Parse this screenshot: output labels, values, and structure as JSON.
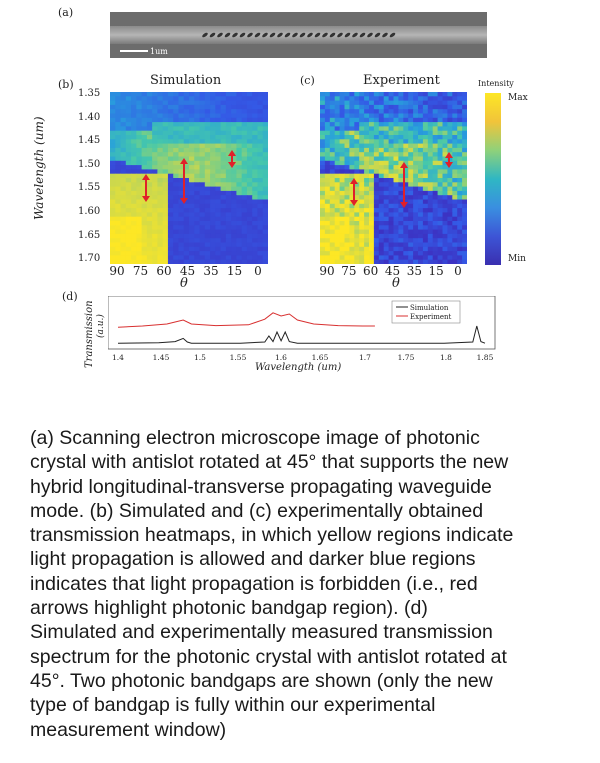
{
  "panel_a": {
    "label": "(a)",
    "scalebar_text": "1um"
  },
  "panel_b": {
    "label": "(b)",
    "title": "Simulation",
    "ylabel": "Wavelength (um)",
    "xlabel": "θ",
    "yticks": [
      "1.35",
      "1.40",
      "1.45",
      "1.50",
      "1.55",
      "1.60",
      "1.65",
      "1.70"
    ],
    "xticks": [
      "90",
      "75",
      "60",
      "45",
      "35",
      "15",
      "0"
    ]
  },
  "panel_c": {
    "label": "(c)",
    "title": "Experiment",
    "xlabel": "θ",
    "xticks": [
      "90",
      "75",
      "60",
      "45",
      "35",
      "15",
      "0"
    ]
  },
  "colorbar": {
    "title": "Intensity",
    "max_label": "Max",
    "min_label": "Min"
  },
  "panel_d": {
    "label": "(d)",
    "ylabel_line1": "Transmission",
    "ylabel_line2": "(a.u.)",
    "xlabel": "Wavelength (um)",
    "xticks": [
      "1.4",
      "1.45",
      "1.5",
      "1.55",
      "1.6",
      "1.65",
      "1.7",
      "1.75",
      "1.8",
      "1.85"
    ],
    "legend": [
      "Simulation",
      "Experiment"
    ]
  },
  "caption": "(a) Scanning electron microscope image of photonic\ncrystal with antislot rotated at 45° that supports the new\nhybrid longitudinal-transverse propagating waveguide\nmode. (b) Simulated and (c) experimentally obtained\ntransmission heatmaps, in which yellow regions indicate\nlight propagation is allowed and darker blue regions\nindicates that light propagation is forbidden (i.e., red\narrows highlight photonic bandgap region). (d)\nSimulated and experimentally measured transmission\nspectrum for the photonic crystal with antislot rotated at\n45°. Two photonic bandgaps are shown (only the new\ntype of bandgap is fully within our experimental\nmeasurement window)",
  "chart_data": [
    {
      "type": "line",
      "xlabel": "Wavelength (um)",
      "ylabel": "Transmission (a.u.)",
      "xlim": [
        1.4,
        1.85
      ],
      "series": [
        {
          "name": "Simulation",
          "x": [
            1.4,
            1.45,
            1.47,
            1.48,
            1.485,
            1.49,
            1.55,
            1.58,
            1.585,
            1.59,
            1.595,
            1.6,
            1.605,
            1.61,
            1.62,
            1.7,
            1.75,
            1.8,
            1.835,
            1.84,
            1.845,
            1.85
          ],
          "y": [
            0.02,
            0.03,
            0.06,
            0.14,
            0.05,
            0.02,
            0.02,
            0.05,
            0.2,
            0.06,
            0.3,
            0.08,
            0.3,
            0.06,
            0.02,
            0.02,
            0.02,
            0.02,
            0.05,
            0.45,
            0.06,
            0.02
          ]
        },
        {
          "name": "Experiment",
          "x": [
            1.4,
            1.43,
            1.46,
            1.47,
            1.48,
            1.49,
            1.52,
            1.56,
            1.58,
            1.59,
            1.6,
            1.61,
            1.62,
            1.64,
            1.67,
            1.7,
            1.715
          ],
          "y": [
            0.42,
            0.45,
            0.5,
            0.55,
            0.6,
            0.5,
            0.46,
            0.48,
            0.62,
            0.78,
            0.7,
            0.75,
            0.6,
            0.5,
            0.46,
            0.45,
            0.45
          ]
        }
      ]
    }
  ]
}
